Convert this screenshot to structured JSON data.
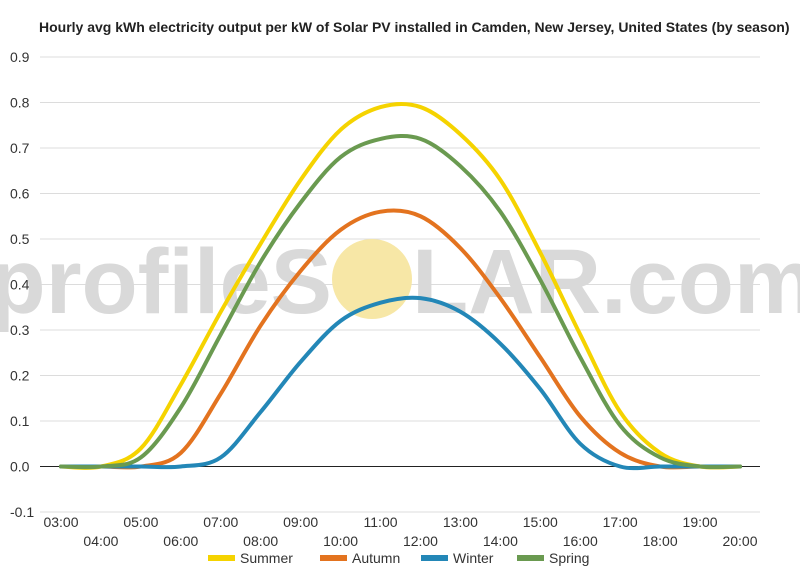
{
  "watermark": {
    "left": "profileS",
    "right": "LAR.com",
    "sun_color": "#f7e7a6"
  },
  "chart_data": {
    "type": "line",
    "title": "Hourly avg kWh electricity output per kW of Solar PV installed in Camden, New Jersey, United States (by season)",
    "xlabel": "",
    "ylabel": "",
    "ylim": [
      -0.1,
      0.9
    ],
    "yticks": [
      "-0.1",
      "0.0",
      "0.1",
      "0.2",
      "0.3",
      "0.4",
      "0.5",
      "0.6",
      "0.7",
      "0.8",
      "0.9"
    ],
    "grid": true,
    "legend_position": "bottom",
    "categories": [
      "03:00",
      "04:00",
      "05:00",
      "06:00",
      "07:00",
      "08:00",
      "09:00",
      "10:00",
      "11:00",
      "12:00",
      "13:00",
      "14:00",
      "15:00",
      "16:00",
      "17:00",
      "18:00",
      "19:00",
      "20:00"
    ],
    "series": [
      {
        "name": "Summer",
        "color": "#f5d300",
        "values": [
          0.0,
          0.0,
          0.04,
          0.18,
          0.34,
          0.49,
          0.63,
          0.74,
          0.79,
          0.79,
          0.73,
          0.63,
          0.47,
          0.29,
          0.12,
          0.03,
          0.0,
          0.0
        ]
      },
      {
        "name": "Autumn",
        "color": "#e3731f",
        "values": [
          0.0,
          0.0,
          0.0,
          0.03,
          0.16,
          0.31,
          0.43,
          0.52,
          0.56,
          0.55,
          0.48,
          0.37,
          0.24,
          0.11,
          0.03,
          0.0,
          0.0,
          0.0
        ]
      },
      {
        "name": "Winter",
        "color": "#2387b7",
        "values": [
          0.0,
          0.0,
          0.0,
          0.0,
          0.02,
          0.12,
          0.23,
          0.32,
          0.36,
          0.37,
          0.34,
          0.27,
          0.17,
          0.05,
          0.0,
          0.0,
          0.0,
          0.0
        ]
      },
      {
        "name": "Spring",
        "color": "#6a9a50",
        "values": [
          0.0,
          0.0,
          0.02,
          0.13,
          0.29,
          0.45,
          0.58,
          0.68,
          0.72,
          0.72,
          0.66,
          0.56,
          0.41,
          0.24,
          0.09,
          0.02,
          0.0,
          0.0
        ]
      }
    ]
  }
}
